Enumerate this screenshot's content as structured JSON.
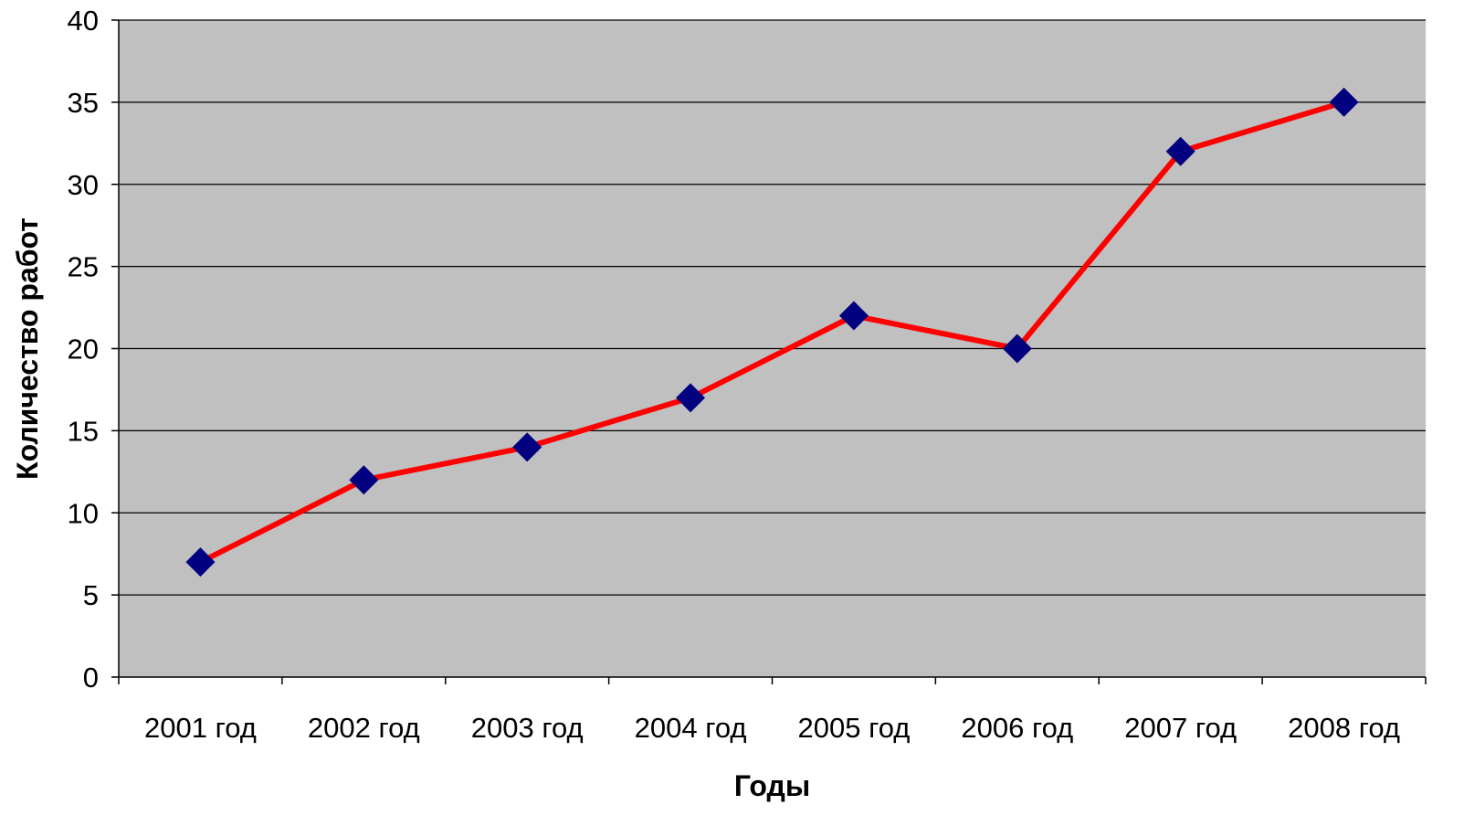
{
  "chart_data": {
    "type": "line",
    "title": "",
    "xlabel": "Годы",
    "ylabel": "Количество работ",
    "categories": [
      "2001 год",
      "2002 год",
      "2003 год",
      "2004 год",
      "2005 год",
      "2006 год",
      "2007 год",
      "2008 год"
    ],
    "series": [
      {
        "values": [
          7,
          12,
          14,
          17,
          22,
          20,
          32,
          35
        ]
      }
    ],
    "ylim": [
      0,
      40
    ],
    "yticks": [
      "0",
      "5",
      "10",
      "15",
      "20",
      "25",
      "30",
      "35",
      "40"
    ],
    "grid": true,
    "legend": "none",
    "colors": {
      "plot_background": "#c0c0c0",
      "line": "#ff0000",
      "marker": "#000080",
      "gridline": "#000000"
    }
  }
}
